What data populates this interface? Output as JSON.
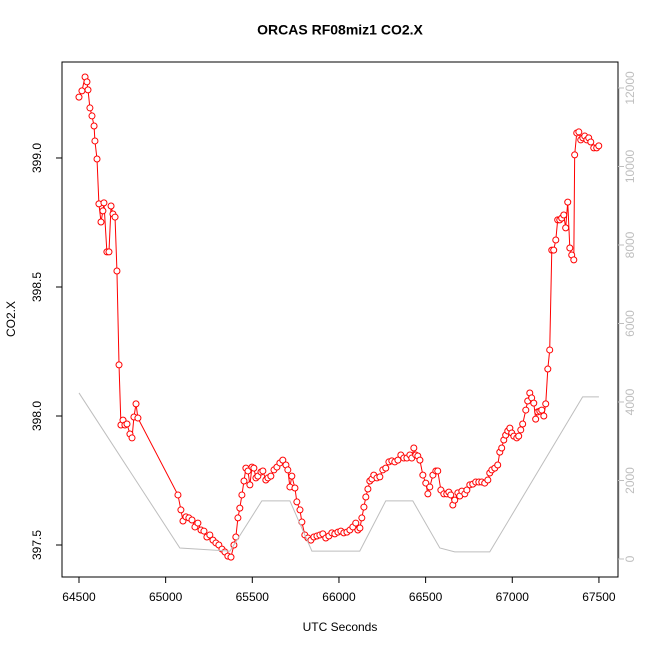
{
  "chart_data": {
    "type": "line",
    "title": "ORCAS RF08miz1 CO2.X",
    "xlabel": "UTC Seconds",
    "ylabel": "CO2.X",
    "xlim": [
      64402,
      67610
    ],
    "xticks": [
      64500,
      65000,
      65500,
      66000,
      66500,
      67000,
      67500
    ],
    "ylim": [
      397.376,
      399.372
    ],
    "yticks": [
      397.5,
      {
        "value": 398.0,
        "label": "398.0"
      },
      398.5,
      {
        "value": 399.0,
        "label": "399.0"
      }
    ],
    "y2lim": [
      -459,
      12662
    ],
    "y2ticks": [
      0,
      2000,
      4000,
      6000,
      8000,
      10000,
      12000
    ],
    "y2color": "#bebebe",
    "grid": false,
    "series": [
      {
        "color": "#ff0000",
        "marker": "open-circle",
        "x": [
          64500,
          64517,
          64535,
          64546,
          64552,
          64563,
          64575,
          64587,
          64592,
          64604,
          64615,
          64627,
          64638,
          64644,
          64661,
          64673,
          64685,
          64696,
          64708,
          64719,
          64731,
          64742,
          64754,
          64765,
          64777,
          64794,
          64806,
          64817,
          64829,
          64840,
          65071,
          65088,
          65100,
          65117,
          65134,
          65152,
          65169,
          65186,
          65204,
          65221,
          65238,
          65255,
          65273,
          65290,
          65307,
          65325,
          65342,
          65359,
          65377,
          65394,
          65405,
          65417,
          65428,
          65440,
          65452,
          65463,
          65475,
          65486,
          65498,
          65509,
          65521,
          65532,
          65550,
          65561,
          65578,
          65590,
          65607,
          65625,
          65642,
          65659,
          65676,
          65694,
          65705,
          65717,
          65728,
          65746,
          65757,
          65775,
          65786,
          65803,
          65821,
          65838,
          65855,
          65873,
          65890,
          65907,
          65924,
          65942,
          65959,
          65976,
          65994,
          66011,
          66028,
          66046,
          66063,
          66080,
          66097,
          66109,
          66121,
          66132,
          66144,
          66155,
          66167,
          66178,
          66190,
          66201,
          66219,
          66236,
          66253,
          66270,
          66288,
          66305,
          66322,
          66340,
          66357,
          66374,
          66392,
          66409,
          66420,
          66432,
          66443,
          66455,
          66467,
          66484,
          66501,
          66513,
          66524,
          66542,
          66559,
          66570,
          66588,
          66605,
          66622,
          66634,
          66645,
          66657,
          66668,
          66686,
          66697,
          66709,
          66726,
          66738,
          66755,
          66772,
          66789,
          66807,
          66824,
          66841,
          66859,
          66870,
          66882,
          66899,
          66916,
          66928,
          66939,
          66951,
          66962,
          66974,
          66986,
          66997,
          67009,
          67026,
          67037,
          67049,
          67060,
          67078,
          67089,
          67101,
          67112,
          67124,
          67135,
          67147,
          67159,
          67170,
          67182,
          67193,
          67205,
          67216,
          67228,
          67239,
          67251,
          67262,
          67274,
          67285,
          67297,
          67308,
          67320,
          67332,
          67343,
          67355,
          67360,
          67372,
          67384,
          67395,
          67407,
          67418,
          67430,
          67441,
          67453,
          67470,
          67487,
          67499
        ],
        "values": [
          399.236,
          399.26,
          399.314,
          399.295,
          399.264,
          399.194,
          399.163,
          399.124,
          399.066,
          398.996,
          398.822,
          398.752,
          398.795,
          398.826,
          398.636,
          398.636,
          398.814,
          398.783,
          398.771,
          398.562,
          398.198,
          397.965,
          397.984,
          397.965,
          397.969,
          397.93,
          397.915,
          397.996,
          398.047,
          397.992,
          397.694,
          397.636,
          397.593,
          397.609,
          397.605,
          397.597,
          397.57,
          397.585,
          397.558,
          397.554,
          397.531,
          397.539,
          397.519,
          397.508,
          397.5,
          397.484,
          397.473,
          397.457,
          397.453,
          397.5,
          397.531,
          397.605,
          397.643,
          397.694,
          397.748,
          397.798,
          397.787,
          397.733,
          397.802,
          397.798,
          397.76,
          397.767,
          397.783,
          397.787,
          397.752,
          397.76,
          397.767,
          397.791,
          397.802,
          397.818,
          397.829,
          397.81,
          397.791,
          397.725,
          397.767,
          397.721,
          397.667,
          397.636,
          397.589,
          397.539,
          397.527,
          397.519,
          397.531,
          397.535,
          397.539,
          397.543,
          397.527,
          397.535,
          397.547,
          397.543,
          397.55,
          397.554,
          397.547,
          397.55,
          397.558,
          397.57,
          397.585,
          397.558,
          397.566,
          397.605,
          397.647,
          397.686,
          397.717,
          397.748,
          397.756,
          397.771,
          397.76,
          397.764,
          397.791,
          397.798,
          397.822,
          397.826,
          397.822,
          397.829,
          397.849,
          397.837,
          397.837,
          397.849,
          397.837,
          397.876,
          397.849,
          397.845,
          397.829,
          397.771,
          397.74,
          397.698,
          397.725,
          397.771,
          397.787,
          397.787,
          397.713,
          397.698,
          397.698,
          397.705,
          397.694,
          397.655,
          397.674,
          397.702,
          397.69,
          397.709,
          397.698,
          397.713,
          397.733,
          397.736,
          397.744,
          397.744,
          397.744,
          397.74,
          397.752,
          397.779,
          397.791,
          397.798,
          397.81,
          397.86,
          397.876,
          397.907,
          397.926,
          397.942,
          397.953,
          397.934,
          397.922,
          397.915,
          397.922,
          397.946,
          397.969,
          398.023,
          398.058,
          398.089,
          398.07,
          398.05,
          397.988,
          398.016,
          398.019,
          398.023,
          398.0,
          398.047,
          398.182,
          398.256,
          398.643,
          398.643,
          398.682,
          398.76,
          398.76,
          398.767,
          398.779,
          398.729,
          398.829,
          398.651,
          398.624,
          398.605,
          399.012,
          399.097,
          399.101,
          399.07,
          399.078,
          399.085,
          399.07,
          399.078,
          399.062,
          399.039,
          399.039,
          399.047
        ]
      },
      {
        "color": "#bebebe",
        "axis": "y2",
        "x": [
          64500,
          65082,
          65371,
          65555,
          65717,
          65844,
          66120,
          66270,
          66426,
          66582,
          66668,
          66870,
          67406,
          67500
        ],
        "values": [
          4230,
          280,
          200,
          1480,
          1480,
          200,
          200,
          1480,
          1480,
          280,
          180,
          180,
          4130,
          4130
        ]
      }
    ]
  }
}
